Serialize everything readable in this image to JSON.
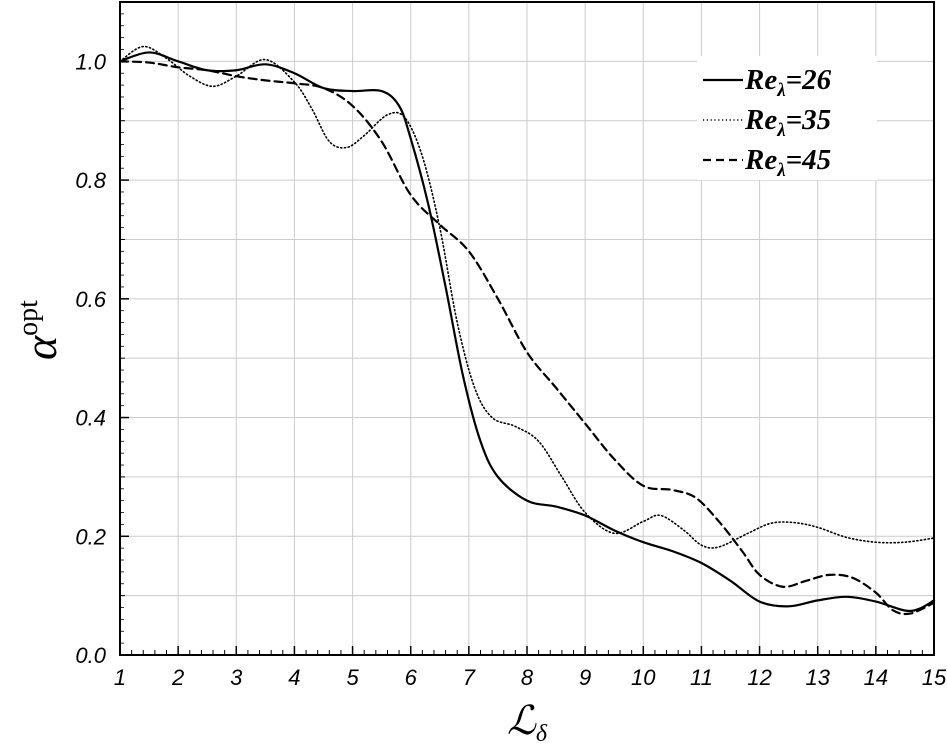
{
  "chart_data": {
    "type": "line",
    "xlabel_main": "ℒ",
    "xlabel_sub": "δ",
    "ylabel_main": "α",
    "ylabel_sup": "opt",
    "xlim": [
      1,
      15
    ],
    "ylim": [
      0,
      1.1
    ],
    "grid": true,
    "legend_position": "top-right",
    "x_ticks": [
      "1",
      "2",
      "3",
      "4",
      "5",
      "6",
      "7",
      "8",
      "9",
      "10",
      "11",
      "12",
      "13",
      "14",
      "15"
    ],
    "y_ticks": [
      "0.0",
      "0.2",
      "0.4",
      "0.6",
      "0.8",
      "1.0"
    ],
    "series": [
      {
        "name_main": "Re",
        "name_sub": "λ",
        "name_rest": "=26",
        "style": "solid",
        "points": [
          [
            1,
            1.0
          ],
          [
            1.5,
            1.015
          ],
          [
            2,
            1.0
          ],
          [
            2.5,
            0.985
          ],
          [
            3,
            0.985
          ],
          [
            3.5,
            0.995
          ],
          [
            4,
            0.98
          ],
          [
            4.5,
            0.955
          ],
          [
            5,
            0.95
          ],
          [
            5.5,
            0.95
          ],
          [
            5.8,
            0.925
          ],
          [
            6,
            0.87
          ],
          [
            6.3,
            0.76
          ],
          [
            6.6,
            0.62
          ],
          [
            6.9,
            0.47
          ],
          [
            7.2,
            0.36
          ],
          [
            7.5,
            0.3
          ],
          [
            8,
            0.26
          ],
          [
            8.5,
            0.25
          ],
          [
            9,
            0.235
          ],
          [
            9.5,
            0.21
          ],
          [
            10,
            0.19
          ],
          [
            10.5,
            0.175
          ],
          [
            11,
            0.155
          ],
          [
            11.5,
            0.125
          ],
          [
            12,
            0.09
          ],
          [
            12.5,
            0.082
          ],
          [
            13,
            0.092
          ],
          [
            13.5,
            0.098
          ],
          [
            14,
            0.09
          ],
          [
            14.5,
            0.075
          ],
          [
            14.75,
            0.078
          ],
          [
            15,
            0.092
          ]
        ]
      },
      {
        "name_main": "Re",
        "name_sub": "λ",
        "name_rest": "=35",
        "style": "dotted",
        "points": [
          [
            1,
            1.0
          ],
          [
            1.4,
            1.025
          ],
          [
            1.8,
            1.005
          ],
          [
            2.2,
            0.975
          ],
          [
            2.6,
            0.958
          ],
          [
            3,
            0.975
          ],
          [
            3.5,
            1.003
          ],
          [
            4,
            0.965
          ],
          [
            4.3,
            0.92
          ],
          [
            4.6,
            0.865
          ],
          [
            4.9,
            0.855
          ],
          [
            5.2,
            0.875
          ],
          [
            5.6,
            0.91
          ],
          [
            5.9,
            0.905
          ],
          [
            6.2,
            0.84
          ],
          [
            6.5,
            0.72
          ],
          [
            6.8,
            0.56
          ],
          [
            7.1,
            0.45
          ],
          [
            7.4,
            0.4
          ],
          [
            7.8,
            0.385
          ],
          [
            8.2,
            0.36
          ],
          [
            8.6,
            0.3
          ],
          [
            9,
            0.24
          ],
          [
            9.5,
            0.205
          ],
          [
            10,
            0.225
          ],
          [
            10.3,
            0.235
          ],
          [
            10.7,
            0.21
          ],
          [
            11,
            0.185
          ],
          [
            11.3,
            0.182
          ],
          [
            11.8,
            0.205
          ],
          [
            12.2,
            0.222
          ],
          [
            12.6,
            0.223
          ],
          [
            13,
            0.215
          ],
          [
            13.5,
            0.198
          ],
          [
            14,
            0.19
          ],
          [
            14.5,
            0.19
          ],
          [
            15,
            0.197
          ]
        ]
      },
      {
        "name_main": "Re",
        "name_sub": "λ",
        "name_rest": "=45",
        "style": "dashed",
        "points": [
          [
            1,
            1.0
          ],
          [
            1.5,
            0.998
          ],
          [
            2,
            0.99
          ],
          [
            2.5,
            0.985
          ],
          [
            3,
            0.975
          ],
          [
            3.5,
            0.968
          ],
          [
            4,
            0.963
          ],
          [
            4.5,
            0.955
          ],
          [
            5,
            0.925
          ],
          [
            5.5,
            0.865
          ],
          [
            6,
            0.775
          ],
          [
            6.5,
            0.725
          ],
          [
            7,
            0.68
          ],
          [
            7.5,
            0.6
          ],
          [
            8,
            0.51
          ],
          [
            8.5,
            0.45
          ],
          [
            9,
            0.39
          ],
          [
            9.5,
            0.33
          ],
          [
            10,
            0.285
          ],
          [
            10.5,
            0.278
          ],
          [
            10.9,
            0.265
          ],
          [
            11.3,
            0.225
          ],
          [
            11.7,
            0.175
          ],
          [
            12,
            0.135
          ],
          [
            12.4,
            0.115
          ],
          [
            12.8,
            0.125
          ],
          [
            13.2,
            0.135
          ],
          [
            13.6,
            0.13
          ],
          [
            14,
            0.105
          ],
          [
            14.3,
            0.075
          ],
          [
            14.6,
            0.07
          ],
          [
            15,
            0.088
          ]
        ]
      }
    ]
  }
}
